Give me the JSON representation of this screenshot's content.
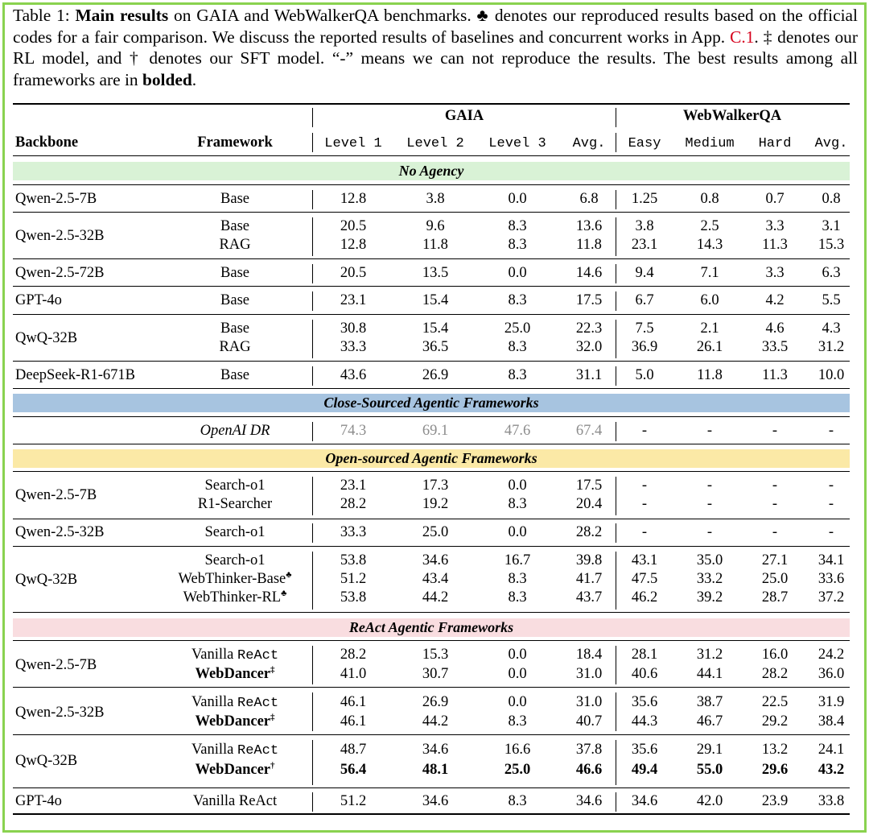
{
  "caption": {
    "prefix": "Table 1: ",
    "bold_title": "Main results",
    "text1": " on GAIA and WebWalkerQA benchmarks. ",
    "club": "♣",
    "text2": " denotes our reproduced results based on the official codes for a fair comparison. We discuss the reported results of baselines and concurrent works in App. ",
    "ref": "C.1",
    "text3": ". ‡ denotes our RL model, and † denotes our SFT model. “-” means we can not reproduce the results. The best results among all frameworks are in ",
    "bolded": "bolded",
    "end": "."
  },
  "header": {
    "group_gaia": "GAIA",
    "group_ww": "WebWalkerQA",
    "backbone": "Backbone",
    "framework": "Framework",
    "cols": [
      "Level 1",
      "Level 2",
      "Level 3",
      "Avg.",
      "Easy",
      "Medium",
      "Hard",
      "Avg."
    ]
  },
  "sections": {
    "no_agency": "No Agency",
    "closed": "Close-Sourced Agentic Frameworks",
    "open": "Open-sourced Agentic Frameworks",
    "react": "ReAct Agentic Frameworks"
  },
  "colors": {
    "border": "#8ad24f",
    "no_agency_band": "#d9f2d6",
    "closed_band": "#a7c4e0",
    "open_band": "#fbe9a6",
    "react_band": "#f9dde0",
    "grey_text": "#8c8c8c"
  },
  "rows": {
    "r1": {
      "backbone": "Qwen-2.5-7B",
      "fw": "Base",
      "v": [
        "12.8",
        "3.8",
        "0.0",
        "6.8",
        "1.25",
        "0.8",
        "0.7",
        "0.8"
      ]
    },
    "r2": {
      "backbone": "Qwen-2.5-32B",
      "fw": "Base",
      "v": [
        "20.5",
        "9.6",
        "8.3",
        "13.6",
        "3.8",
        "2.5",
        "3.3",
        "3.1"
      ]
    },
    "r3": {
      "fw": "RAG",
      "v": [
        "12.8",
        "11.8",
        "8.3",
        "11.8",
        "23.1",
        "14.3",
        "11.3",
        "15.3"
      ]
    },
    "r4": {
      "backbone": "Qwen-2.5-72B",
      "fw": "Base",
      "v": [
        "20.5",
        "13.5",
        "0.0",
        "14.6",
        "9.4",
        "7.1",
        "3.3",
        "6.3"
      ]
    },
    "r5": {
      "backbone": "GPT-4o",
      "fw": "Base",
      "v": [
        "23.1",
        "15.4",
        "8.3",
        "17.5",
        "6.7",
        "6.0",
        "4.2",
        "5.5"
      ]
    },
    "r6": {
      "backbone": "QwQ-32B",
      "fw": "Base",
      "v": [
        "30.8",
        "15.4",
        "25.0",
        "22.3",
        "7.5",
        "2.1",
        "4.6",
        "4.3"
      ]
    },
    "r7": {
      "fw": "RAG",
      "v": [
        "33.3",
        "36.5",
        "8.3",
        "32.0",
        "36.9",
        "26.1",
        "33.5",
        "31.2"
      ]
    },
    "r8": {
      "backbone": "DeepSeek-R1-671B",
      "fw": "Base",
      "v": [
        "43.6",
        "26.9",
        "8.3",
        "31.1",
        "5.0",
        "11.8",
        "11.3",
        "10.0"
      ]
    },
    "r9": {
      "fw": "OpenAI DR",
      "v": [
        "74.3",
        "69.1",
        "47.6",
        "67.4",
        "-",
        "-",
        "-",
        "-"
      ]
    },
    "r10": {
      "backbone": "Qwen-2.5-7B",
      "fw": "Search-o1",
      "v": [
        "23.1",
        "17.3",
        "0.0",
        "17.5",
        "-",
        "-",
        "-",
        "-"
      ]
    },
    "r11": {
      "fw": "R1-Searcher",
      "v": [
        "28.2",
        "19.2",
        "8.3",
        "20.4",
        "-",
        "-",
        "-",
        "-"
      ]
    },
    "r12": {
      "backbone": "Qwen-2.5-32B",
      "fw": "Search-o1",
      "v": [
        "33.3",
        "25.0",
        "0.0",
        "28.2",
        "-",
        "-",
        "-",
        "-"
      ]
    },
    "r13": {
      "backbone": "QwQ-32B",
      "fw": "Search-o1",
      "v": [
        "53.8",
        "34.6",
        "16.7",
        "39.8",
        "43.1",
        "35.0",
        "27.1",
        "34.1"
      ]
    },
    "r14": {
      "fw": "WebThinker-Base",
      "v": [
        "51.2",
        "43.4",
        "8.3",
        "41.7",
        "47.5",
        "33.2",
        "25.0",
        "33.6"
      ]
    },
    "r15": {
      "fw": "WebThinker-RL",
      "v": [
        "53.8",
        "44.2",
        "8.3",
        "43.7",
        "46.2",
        "39.2",
        "28.7",
        "37.2"
      ]
    },
    "r16": {
      "backbone": "Qwen-2.5-7B",
      "fw_a": "Vanilla ",
      "fw_b": "ReAct",
      "v": [
        "28.2",
        "15.3",
        "0.0",
        "18.4",
        "28.1",
        "31.2",
        "16.0",
        "24.2"
      ]
    },
    "r17": {
      "fw": "WebDancer",
      "mark": "‡",
      "v": [
        "41.0",
        "30.7",
        "0.0",
        "31.0",
        "40.6",
        "44.1",
        "28.2",
        "36.0"
      ]
    },
    "r18": {
      "backbone": "Qwen-2.5-32B",
      "fw_a": "Vanilla ",
      "fw_b": "ReAct",
      "v": [
        "46.1",
        "26.9",
        "0.0",
        "31.0",
        "35.6",
        "38.7",
        "22.5",
        "31.9"
      ]
    },
    "r19": {
      "fw": "WebDancer",
      "mark": "‡",
      "v": [
        "46.1",
        "44.2",
        "8.3",
        "40.7",
        "44.3",
        "46.7",
        "29.2",
        "38.4"
      ]
    },
    "r20": {
      "backbone": "QwQ-32B",
      "fw_a": "Vanilla ",
      "fw_b": "ReAct",
      "v": [
        "48.7",
        "34.6",
        "16.6",
        "37.8",
        "35.6",
        "29.1",
        "13.2",
        "24.1"
      ]
    },
    "r21": {
      "fw": "WebDancer",
      "mark": "†",
      "v": [
        "56.4",
        "48.1",
        "25.0",
        "46.6",
        "49.4",
        "55.0",
        "29.6",
        "43.2"
      ]
    },
    "r22": {
      "backbone": "GPT-4o",
      "fw": "Vanilla ReAct",
      "v": [
        "51.2",
        "34.6",
        "8.3",
        "34.6",
        "34.6",
        "42.0",
        "23.9",
        "33.8"
      ]
    }
  }
}
